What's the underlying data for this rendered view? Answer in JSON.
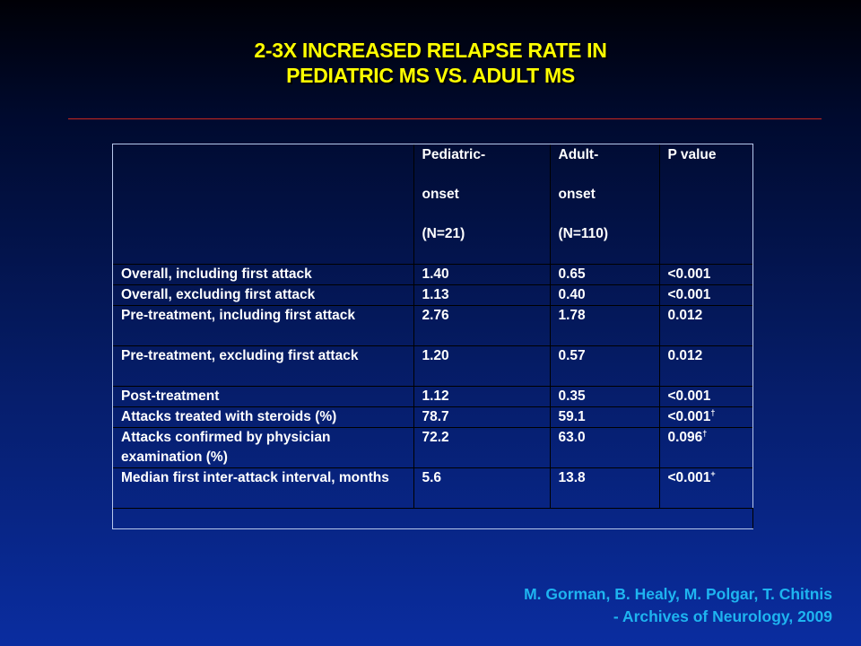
{
  "slide": {
    "title_line1": "2-3X INCREASED RELAPSE RATE IN",
    "title_line2": "PEDIATRIC MS VS. ADULT MS"
  },
  "table": {
    "header": {
      "pediatric": [
        "Pediatric-",
        "onset",
        "(N=21)"
      ],
      "adult": [
        "Adult-",
        "onset",
        "(N=110)"
      ],
      "pvalue": "P value"
    },
    "rows": [
      {
        "label": "Overall, including first attack",
        "pediatric": "1.40",
        "adult": "0.65",
        "p": "<0.001",
        "mark": ""
      },
      {
        "label": "Overall, excluding first attack",
        "pediatric": "1.13",
        "adult": "0.40",
        "p": "<0.001",
        "mark": ""
      },
      {
        "label": "Pre-treatment, including first attack",
        "pediatric": "2.76",
        "adult": "1.78",
        "p": "0.012",
        "mark": ""
      },
      {
        "label": "Pre-treatment, excluding first attack",
        "pediatric": "1.20",
        "adult": "0.57",
        "p": "0.012",
        "mark": ""
      },
      {
        "label": "Post-treatment",
        "pediatric": "1.12",
        "adult": "0.35",
        "p": "<0.001",
        "mark": ""
      },
      {
        "label": "Attacks treated with steroids (%)",
        "pediatric": "78.7",
        "adult": "59.1",
        "p": "<0.001",
        "mark": "†"
      },
      {
        "label": "Attacks confirmed by physician examination (%)",
        "pediatric": "72.2",
        "adult": "63.0",
        "p": "0.096",
        "mark": "†"
      },
      {
        "label": "Median first inter-attack interval, months",
        "pediatric": "5.6",
        "adult": "13.8",
        "p": "<0.001",
        "mark": "+"
      }
    ]
  },
  "citation": {
    "authors": "M. Gorman, B. Healy, M. Polgar, T. Chitnis",
    "journal": "- Archives of Neurology, 2009"
  },
  "colors": {
    "title": "#ffff00",
    "citation": "#1eb4f0",
    "rule": "#c8281e",
    "table_text": "#ffffff"
  }
}
